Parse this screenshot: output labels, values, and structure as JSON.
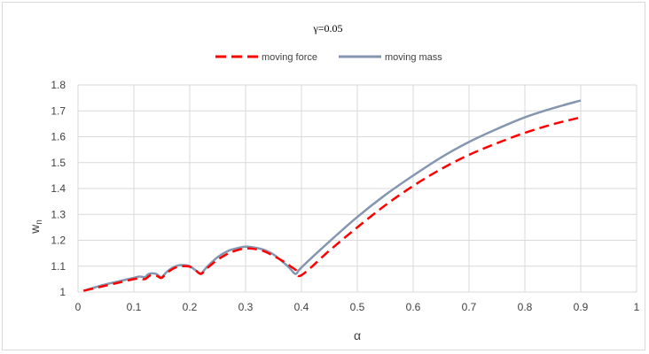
{
  "chart_data": {
    "type": "line",
    "title": "γ=0.05",
    "xlabel": "α",
    "ylabel": "w",
    "ylabel_subscript": "n",
    "xlim": [
      0,
      1
    ],
    "ylim": [
      1,
      1.8
    ],
    "xticks": [
      "0",
      "0.1",
      "0.2",
      "0.3",
      "0.4",
      "0.5",
      "0.6",
      "0.7",
      "0.8",
      "0.9",
      "1"
    ],
    "yticks": [
      "1",
      "1.1",
      "1.2",
      "1.3",
      "1.4",
      "1.5",
      "1.6",
      "1.7",
      "1.8"
    ],
    "grid": true,
    "legend_position": "top",
    "series": [
      {
        "name": "moving force",
        "color": "#ff0000",
        "style": "dashed",
        "x": [
          0.01,
          0.03,
          0.05,
          0.07,
          0.09,
          0.1,
          0.11,
          0.12,
          0.13,
          0.14,
          0.145,
          0.15,
          0.16,
          0.17,
          0.18,
          0.19,
          0.2,
          0.21,
          0.22,
          0.23,
          0.25,
          0.27,
          0.29,
          0.3,
          0.31,
          0.33,
          0.35,
          0.37,
          0.38,
          0.39,
          0.4,
          0.45,
          0.5,
          0.55,
          0.6,
          0.65,
          0.7,
          0.75,
          0.8,
          0.85,
          0.9
        ],
        "values": [
          1.005,
          1.015,
          1.025,
          1.035,
          1.045,
          1.05,
          1.052,
          1.05,
          1.065,
          1.063,
          1.058,
          1.055,
          1.075,
          1.09,
          1.098,
          1.1,
          1.098,
          1.085,
          1.07,
          1.09,
          1.125,
          1.15,
          1.165,
          1.168,
          1.168,
          1.16,
          1.14,
          1.115,
          1.1,
          1.085,
          1.065,
          1.16,
          1.25,
          1.335,
          1.41,
          1.475,
          1.53,
          1.575,
          1.615,
          1.648,
          1.675
        ]
      },
      {
        "name": "moving mass",
        "color": "#8496b0",
        "style": "solid",
        "x": [
          0.01,
          0.03,
          0.05,
          0.07,
          0.09,
          0.1,
          0.11,
          0.12,
          0.125,
          0.13,
          0.14,
          0.145,
          0.15,
          0.16,
          0.17,
          0.18,
          0.19,
          0.2,
          0.21,
          0.22,
          0.23,
          0.25,
          0.27,
          0.29,
          0.3,
          0.31,
          0.33,
          0.35,
          0.37,
          0.38,
          0.39,
          0.4,
          0.45,
          0.5,
          0.55,
          0.6,
          0.65,
          0.7,
          0.75,
          0.8,
          0.85,
          0.9
        ],
        "values": [
          1.005,
          1.018,
          1.03,
          1.04,
          1.05,
          1.055,
          1.06,
          1.058,
          1.068,
          1.072,
          1.07,
          1.062,
          1.058,
          1.08,
          1.095,
          1.103,
          1.104,
          1.1,
          1.085,
          1.072,
          1.095,
          1.135,
          1.16,
          1.172,
          1.175,
          1.174,
          1.165,
          1.145,
          1.11,
          1.09,
          1.07,
          1.095,
          1.195,
          1.29,
          1.375,
          1.45,
          1.52,
          1.58,
          1.63,
          1.675,
          1.71,
          1.74
        ]
      }
    ]
  }
}
